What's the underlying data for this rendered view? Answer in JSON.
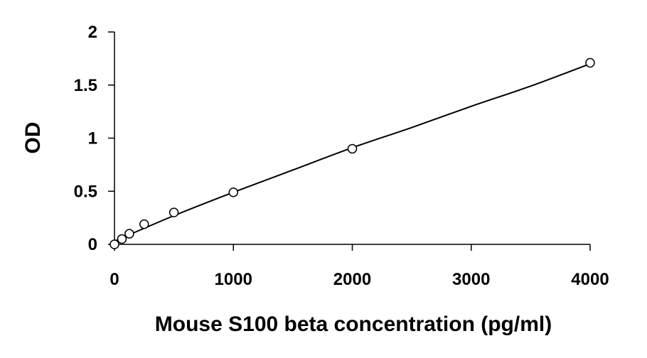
{
  "chart_data": {
    "type": "scatter",
    "title": "",
    "xlabel": "Mouse S100 beta concentration (pg/ml)",
    "ylabel": "OD",
    "xlim": [
      0,
      4000
    ],
    "ylim": [
      0,
      2
    ],
    "xticks": [
      "0",
      "1000",
      "2000",
      "3000",
      "4000"
    ],
    "yticks": [
      "0",
      "0.5",
      "1",
      "1.5",
      "2"
    ],
    "grid": false,
    "legend": "none",
    "colors": {
      "points": "#000000",
      "fit_line": "#000000",
      "axes": "#000000"
    },
    "series": [
      {
        "x": [
          0,
          62.5,
          125,
          250,
          500,
          1000,
          2000,
          4000
        ],
        "y": [
          0.0,
          0.05,
          0.1,
          0.19,
          0.3,
          0.49,
          0.9,
          1.71
        ],
        "marker": "open-circle"
      }
    ],
    "fit_line": {
      "kind": "smooth-curve",
      "x": [
        0,
        500,
        1000,
        1500,
        2000,
        2500,
        3000,
        3500,
        4000
      ],
      "y": [
        0.03,
        0.27,
        0.49,
        0.7,
        0.91,
        1.1,
        1.3,
        1.49,
        1.7
      ]
    }
  }
}
